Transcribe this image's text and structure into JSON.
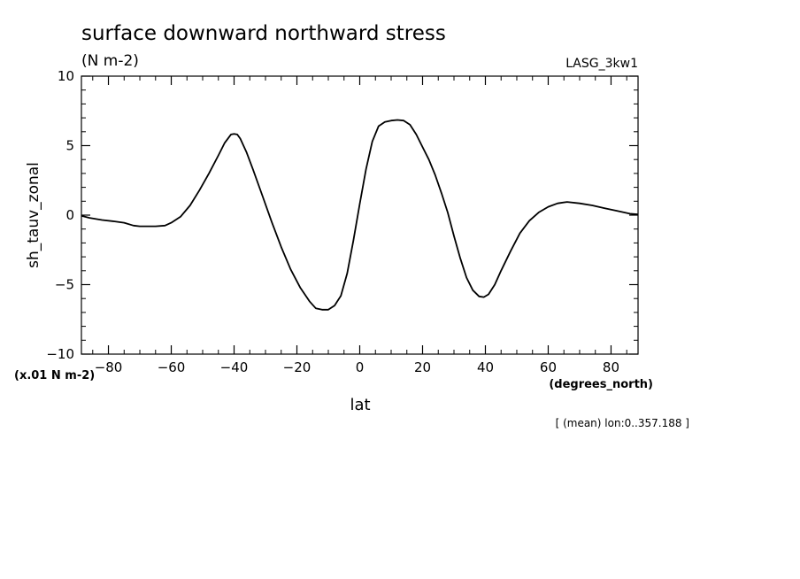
{
  "chart_data": {
    "type": "line",
    "title": "surface downward northward stress",
    "subtitle": "(N m-2)",
    "dataset_label": "LASG_3kw1",
    "ylabel": "sh_tauv_zonal",
    "xlabel": "lat",
    "x_units": "(degrees_north)",
    "y_scale_note": "(x.01 N m-2)",
    "footnote": "[ (mean) lon:0..357.188 ]",
    "xlim": [
      -88.6,
      88.6
    ],
    "ylim": [
      -10,
      10
    ],
    "x_ticks": [
      -80,
      -60,
      -40,
      -20,
      0,
      20,
      40,
      60,
      80
    ],
    "x_tick_labels": [
      "−80",
      "−60",
      "−40",
      "−20",
      "0",
      "20",
      "40",
      "60",
      "80"
    ],
    "y_ticks": [
      -10,
      -5,
      0,
      5,
      10
    ],
    "y_tick_labels": [
      "−10",
      "−5",
      "0",
      "5",
      "10"
    ],
    "grid": false,
    "color": "#000000",
    "series": [
      {
        "x": [
          -88.6,
          -86,
          -82,
          -78,
          -75,
          -72,
          -70,
          -68,
          -65,
          -62,
          -60,
          -57,
          -54,
          -51,
          -48,
          -45,
          -43,
          -41,
          -40,
          -39,
          -38,
          -36,
          -34,
          -31,
          -28,
          -25,
          -22,
          -19,
          -16,
          -14,
          -12,
          -10,
          -8,
          -6,
          -4,
          -2,
          0,
          2,
          4,
          6,
          8,
          10,
          12,
          14,
          16,
          18,
          20,
          22,
          24,
          26,
          28,
          30,
          32,
          34,
          36,
          38,
          39.5,
          41,
          43,
          45,
          48,
          51,
          54,
          57,
          60,
          63,
          66,
          70,
          74,
          78,
          82,
          86,
          88.6
        ],
        "y": [
          -0.05,
          -0.2,
          -0.35,
          -0.45,
          -0.55,
          -0.75,
          -0.8,
          -0.8,
          -0.8,
          -0.75,
          -0.55,
          -0.1,
          0.7,
          1.8,
          3.0,
          4.3,
          5.2,
          5.8,
          5.85,
          5.8,
          5.5,
          4.5,
          3.3,
          1.4,
          -0.5,
          -2.3,
          -3.9,
          -5.2,
          -6.2,
          -6.7,
          -6.8,
          -6.8,
          -6.5,
          -5.8,
          -4.2,
          -1.8,
          0.8,
          3.3,
          5.3,
          6.4,
          6.7,
          6.8,
          6.85,
          6.8,
          6.5,
          5.8,
          4.9,
          4.0,
          2.9,
          1.6,
          0.2,
          -1.5,
          -3.1,
          -4.5,
          -5.4,
          -5.85,
          -5.9,
          -5.7,
          -5.0,
          -4.0,
          -2.6,
          -1.3,
          -0.4,
          0.2,
          0.6,
          0.85,
          0.95,
          0.85,
          0.7,
          0.5,
          0.3,
          0.1,
          0.05
        ]
      }
    ]
  }
}
